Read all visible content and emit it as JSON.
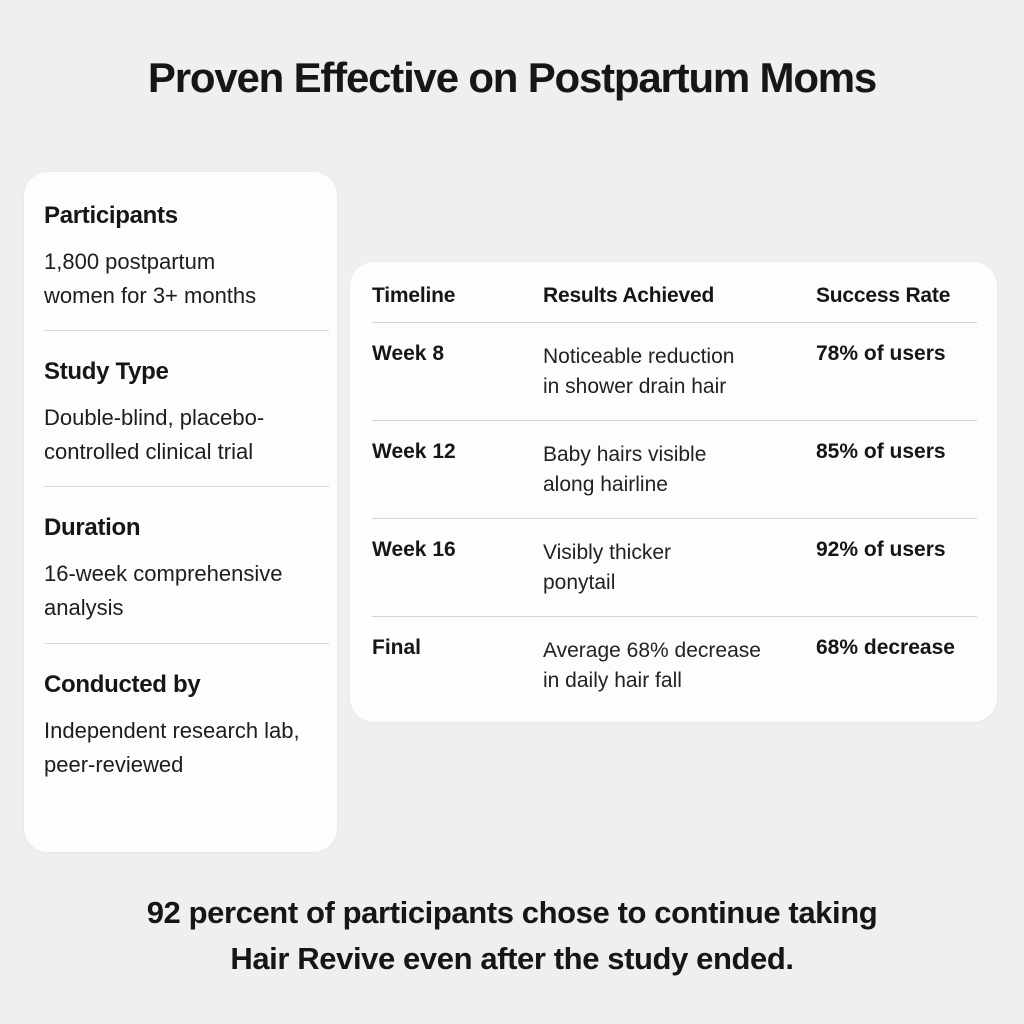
{
  "header": {
    "title": "Proven Effective on Postpartum Moms"
  },
  "study_card": {
    "sections": [
      {
        "heading": "Participants",
        "body": "1,800 postpartum\nwomen for 3+ months"
      },
      {
        "heading": "Study Type",
        "body": "Double-blind, placebo-\ncontrolled clinical trial"
      },
      {
        "heading": "Duration",
        "body": "16-week comprehensive\nanalysis"
      },
      {
        "heading": "Conducted by",
        "body": "Independent research lab,\npeer-reviewed"
      }
    ]
  },
  "results_table": {
    "columns": [
      "Timeline",
      "Results Achieved",
      "Success Rate"
    ],
    "rows": [
      {
        "timeline": "Week 8",
        "result": "Noticeable reduction\nin shower drain hair",
        "success": "78% of users"
      },
      {
        "timeline": "Week 12",
        "result": "Baby hairs visible\nalong hairline",
        "success": "85% of users"
      },
      {
        "timeline": "Week 16",
        "result": "Visibly thicker\nponytail",
        "success": "92% of users"
      },
      {
        "timeline": "Final",
        "result": "Average 68% decrease\nin daily hair fall",
        "success": "68% decrease"
      }
    ]
  },
  "footer": {
    "text": "92 percent of participants chose to continue taking\nHair Revive even after the study ended."
  },
  "colors": {
    "background": "#eef0ef",
    "card": "#fdfdfd",
    "text": "#161616",
    "divider": "#d9d9d9"
  }
}
